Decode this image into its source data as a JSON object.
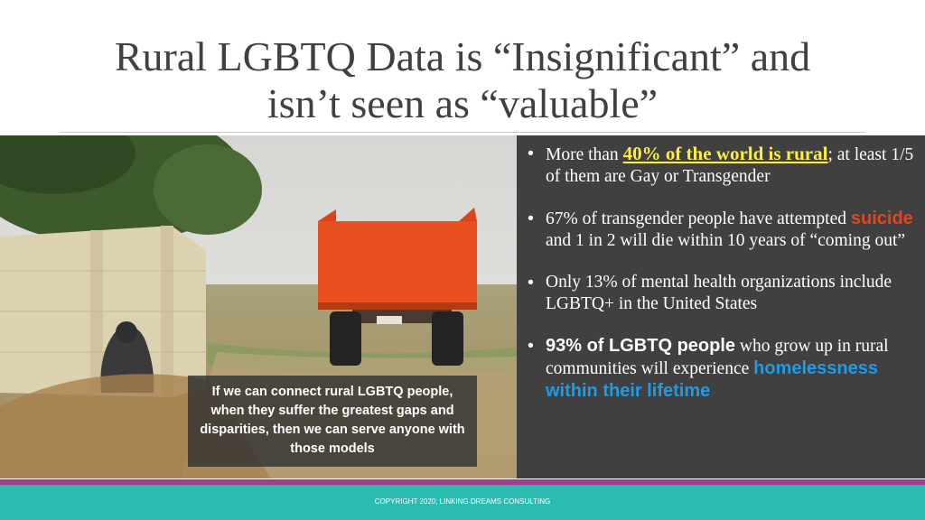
{
  "slide": {
    "title": [
      "Rural LGBTQ Data is “Insignificant” and",
      "isn’t seen as “valuable”"
    ],
    "caption": "If we can connect rural LGBTQ people, when they suffer the greatest gaps and disparities, then we can serve anyone with those models",
    "bullets": [
      [
        "More than ",
        "40% of the world is rural",
        "; at least 1/5 of them are Gay or Transgender"
      ],
      [
        "67% of transgender people have attempted ",
        "suicide",
        " and 1 in 2 will die within 10 years of “coming out”"
      ],
      [
        "Only 13% of mental health organizations include LGBTQ+ in the United States"
      ],
      [
        "93% of LGBTQ people",
        " who grow up in rural communities will experience ",
        "homelessness within their lifetime"
      ]
    ],
    "footer": "COPYRIGHT 2020; LINKING DREAMS CONSULTING"
  }
}
